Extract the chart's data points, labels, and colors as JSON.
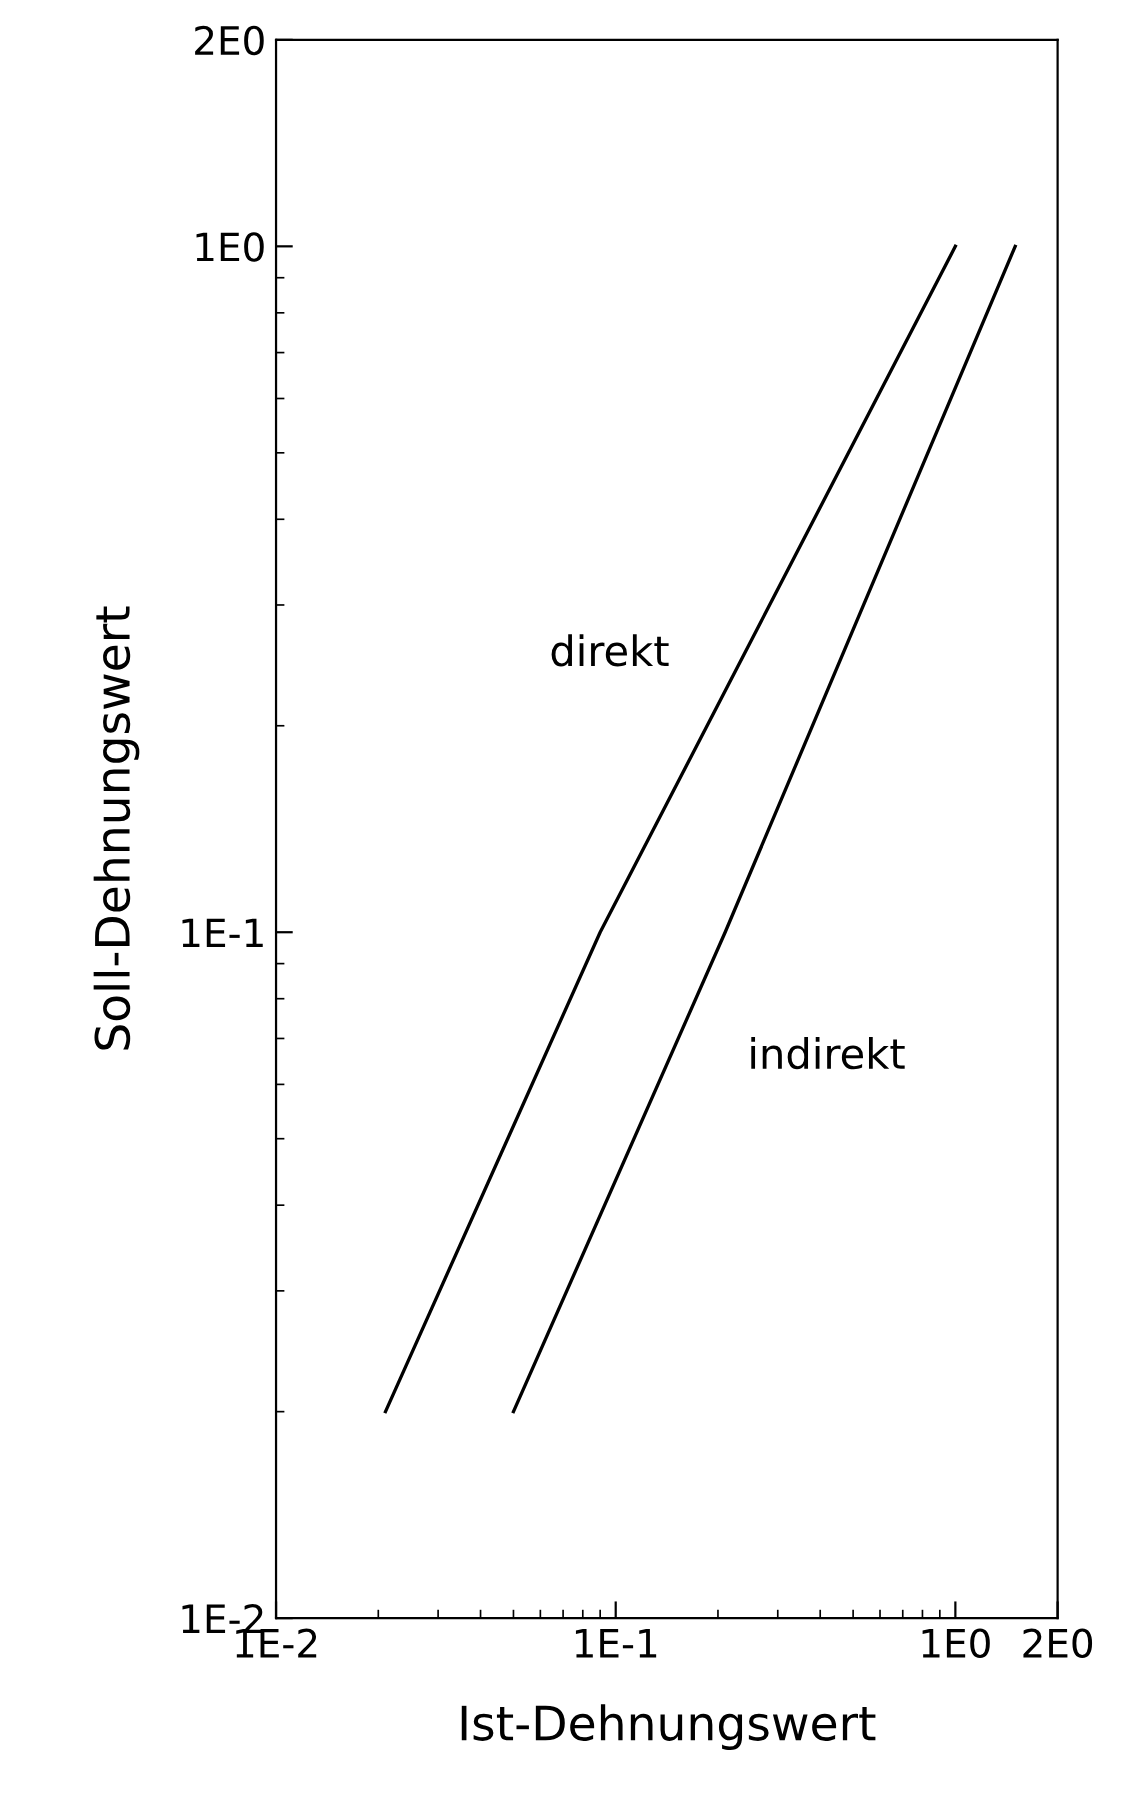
{
  "chart_data": {
    "type": "line",
    "xlabel": "Ist-Dehnungswert",
    "ylabel": "Soll-Dehnungswert",
    "log": "xy",
    "grid": false,
    "legend": false,
    "marker": "none",
    "line_style": "solid",
    "xlim": [
      0.01,
      2
    ],
    "ylim": [
      0.01,
      2
    ],
    "xticks": [
      {
        "value": 0.01,
        "label": "1E-2"
      },
      {
        "value": 0.1,
        "label": "1E-1"
      },
      {
        "value": 1,
        "label": "1E0"
      },
      {
        "value": 2,
        "label": "2E0"
      }
    ],
    "yticks": [
      {
        "value": 0.01,
        "label": "1E-2"
      },
      {
        "value": 0.1,
        "label": "1E-1"
      },
      {
        "value": 1,
        "label": "1E0"
      },
      {
        "value": 2,
        "label": "2E0"
      }
    ],
    "series": [
      {
        "name": "direkt",
        "color": "#000000",
        "x": [
          0.021,
          0.09,
          1.0
        ],
        "values": [
          0.02,
          0.1,
          1.0
        ]
      },
      {
        "name": "indirekt",
        "color": "#000000",
        "x": [
          0.05,
          0.21,
          1.5
        ],
        "values": [
          0.02,
          0.1,
          1.0
        ]
      }
    ]
  }
}
